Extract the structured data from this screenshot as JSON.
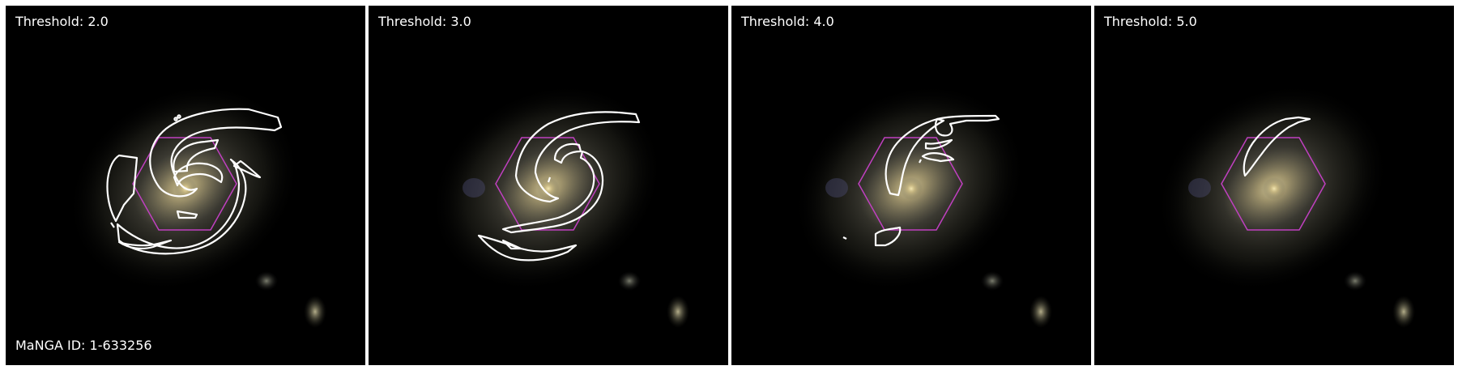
{
  "panels": [
    {
      "title": "Threshold: 2.0"
    },
    {
      "title": "Threshold: 3.0"
    },
    {
      "title": "Threshold: 4.0"
    },
    {
      "title": "Threshold: 5.0"
    }
  ],
  "manga_id": "MaNGA ID: 1-633256",
  "colors": {
    "contour": "#ffffff",
    "hexagon": "#c040c0",
    "background": "#000000"
  }
}
